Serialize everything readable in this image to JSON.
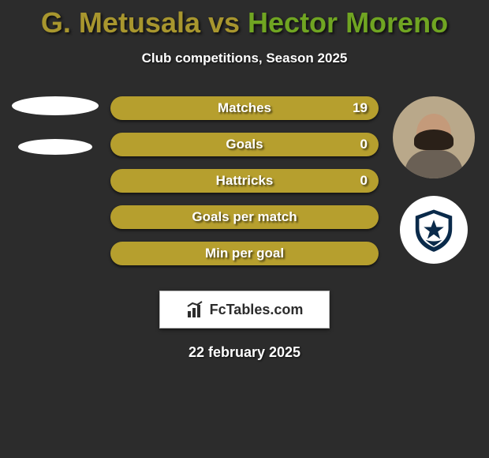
{
  "title": {
    "player1": "G. Metusala",
    "vs": " vs ",
    "player2": "Hector Moreno",
    "color1": "#a8962e",
    "color2": "#70a522"
  },
  "subtitle": "Club competitions, Season 2025",
  "stats": [
    {
      "label": "Matches",
      "rv": "19",
      "lfw": 0
    },
    {
      "label": "Goals",
      "rv": "0",
      "lfw": 0
    },
    {
      "label": "Hattricks",
      "rv": "0",
      "lfw": 0
    },
    {
      "label": "Goals per match",
      "rv": "",
      "lfw": 0
    },
    {
      "label": "Min per goal",
      "rv": "",
      "lfw": 0
    }
  ],
  "bar_color": "#b69f2e",
  "bar_lfill_color": "#6e8b1f",
  "logo_text": "FcTables.com",
  "footer_date": "22 february 2025",
  "crest_colors": {
    "shield": "#0a2a4a",
    "inner": "#ffffff"
  }
}
